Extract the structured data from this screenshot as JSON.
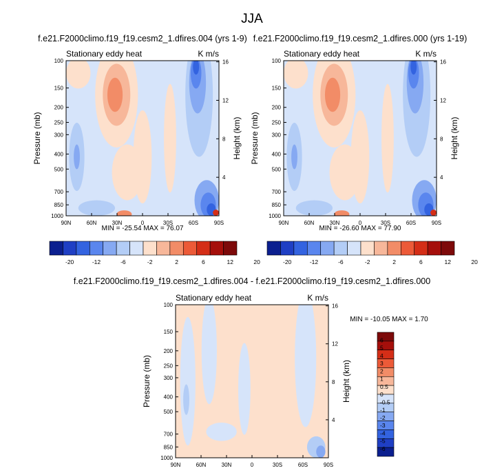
{
  "figure_title": "JJA",
  "colors": {
    "neg": [
      "#0b1f8f",
      "#1f3fc4",
      "#3363e0",
      "#5a86ee",
      "#86a9f2",
      "#b3cdf6",
      "#d6e4fa"
    ],
    "pos": [
      "#fde0cc",
      "#f7b79a",
      "#f28c67",
      "#ec5a38",
      "#d42e17",
      "#a50f0b",
      "#7d0a0a"
    ]
  },
  "chart_data": [
    {
      "type": "heatmap",
      "title": "f.e21.F2000climo.f19_f19.cesm2_1.dfires.004 (yrs 1-9)",
      "left_label": "Stationary eddy heat",
      "right_label": "K m/s",
      "xlabel": "",
      "ylabel": "Pressure (mb)",
      "y2label": "Height (km)",
      "xticks": [
        "90N",
        "60N",
        "30N",
        "0",
        "30S",
        "60S",
        "90S"
      ],
      "yticks": [
        100,
        150,
        200,
        250,
        300,
        400,
        500,
        700,
        850,
        1000
      ],
      "y2ticks": [
        16,
        12,
        8,
        4
      ],
      "ylim": [
        1000,
        100
      ],
      "yscale": "log",
      "stats": "MIN = -25.54   MAX =  76.07",
      "colorbar": {
        "orientation": "horizontal",
        "labels": [
          "-20",
          "-12",
          "-6",
          "-2",
          "2",
          "6",
          "12",
          "20"
        ]
      }
    },
    {
      "type": "heatmap",
      "title": "f.e21.F2000climo.f19_f19.cesm2_1.dfires.000 (yrs 1-19)",
      "left_label": "Stationary eddy heat",
      "right_label": "K m/s",
      "xlabel": "",
      "ylabel": "Pressure (mb)",
      "y2label": "Height (km)",
      "xticks": [
        "90N",
        "60N",
        "30N",
        "0",
        "30S",
        "60S",
        "90S"
      ],
      "yticks": [
        100,
        150,
        200,
        250,
        300,
        400,
        500,
        700,
        850,
        1000
      ],
      "y2ticks": [
        16,
        12,
        8,
        4
      ],
      "ylim": [
        1000,
        100
      ],
      "yscale": "log",
      "stats": "MIN = -26.60   MAX =  77.90",
      "colorbar": {
        "orientation": "horizontal",
        "labels": [
          "-20",
          "-12",
          "-6",
          "-2",
          "2",
          "6",
          "12",
          "20"
        ]
      }
    },
    {
      "type": "heatmap",
      "title": "f.e21.F2000climo.f19_f19.cesm2_1.dfires.004 - f.e21.F2000climo.f19_f19.cesm2_1.dfires.000",
      "left_label": "Stationary eddy heat",
      "right_label": "K m/s",
      "xlabel": "",
      "ylabel": "Pressure (mb)",
      "y2label": "Height (km)",
      "xticks": [
        "90N",
        "60N",
        "30N",
        "0",
        "30S",
        "60S",
        "90S"
      ],
      "yticks": [
        100,
        150,
        200,
        250,
        300,
        400,
        500,
        700,
        850,
        1000
      ],
      "y2ticks": [
        16,
        12,
        8,
        4
      ],
      "ylim": [
        1000,
        100
      ],
      "yscale": "log",
      "stats": "MIN = -10.05   MAX =   1.70",
      "colorbar": {
        "orientation": "vertical",
        "labels": [
          "6",
          "5",
          "4",
          "3",
          "2",
          "1",
          "0.5",
          "0",
          "-0.5",
          "-1",
          "-2",
          "-3",
          "-4",
          "-5",
          "-6"
        ]
      }
    }
  ]
}
